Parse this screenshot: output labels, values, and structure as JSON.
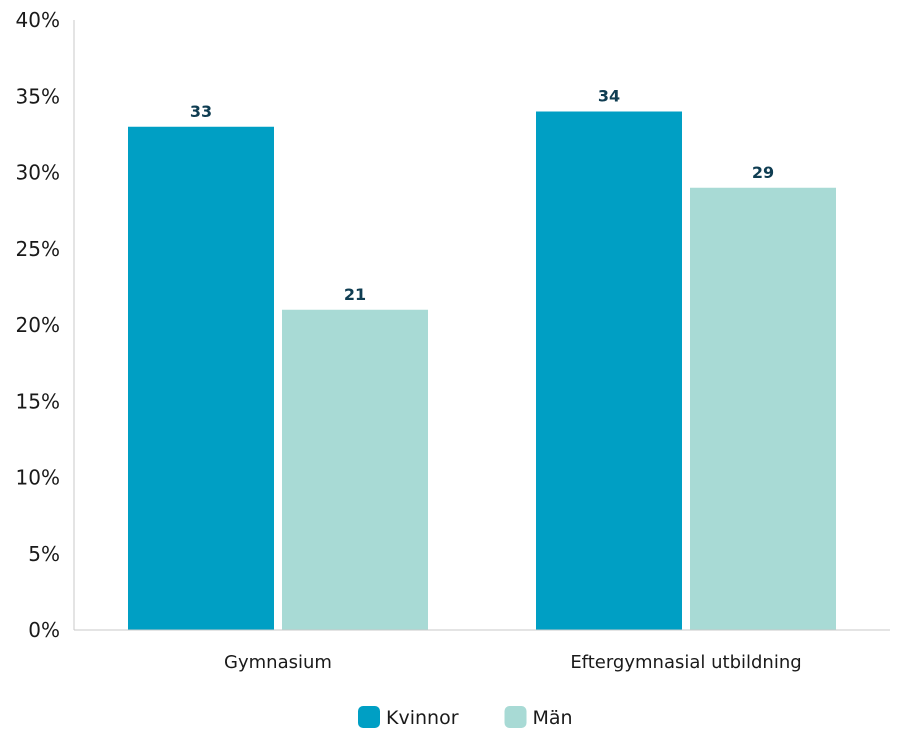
{
  "chart_data": {
    "type": "bar",
    "categories": [
      "Gymnasium",
      "Eftergymnasial utbildning"
    ],
    "series": [
      {
        "name": "Kvinnor",
        "values": [
          33,
          34
        ],
        "color": "#009fc4"
      },
      {
        "name": "Män",
        "values": [
          21,
          29
        ],
        "color": "#a8dad5"
      }
    ],
    "data_labels": [
      [
        "33",
        "34"
      ],
      [
        "21",
        "29"
      ]
    ],
    "y_ticks": [
      {
        "value": 0,
        "label": "0%"
      },
      {
        "value": 5,
        "label": "5%"
      },
      {
        "value": 10,
        "label": "10%"
      },
      {
        "value": 15,
        "label": "15%"
      },
      {
        "value": 20,
        "label": "20%"
      },
      {
        "value": 25,
        "label": "25%"
      },
      {
        "value": 30,
        "label": "30%"
      },
      {
        "value": 35,
        "label": "35%"
      },
      {
        "value": 40,
        "label": "40%"
      }
    ],
    "ylim": [
      0,
      40
    ],
    "title": "",
    "xlabel": "",
    "ylabel": "",
    "grid": false,
    "legend_position": "bottom-center",
    "axis_color": "#c9c9c9",
    "label_color": "#0f3d52"
  }
}
